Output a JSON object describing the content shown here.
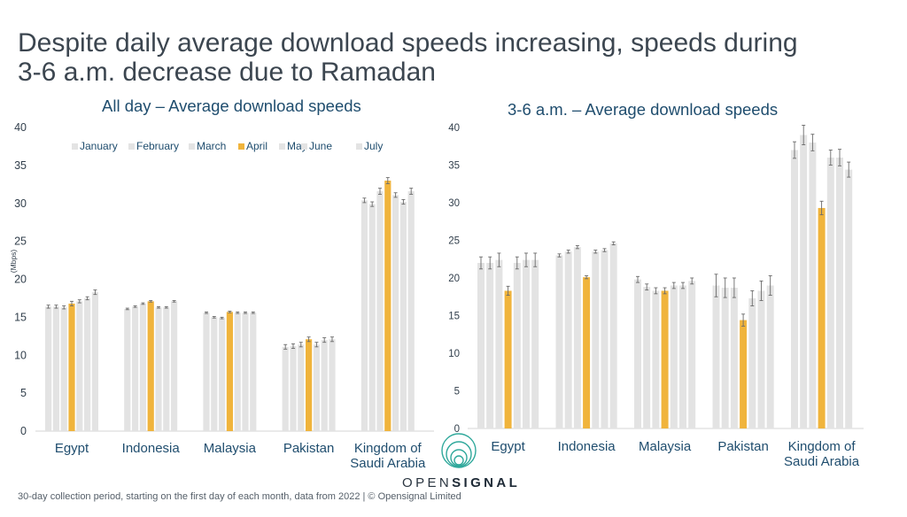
{
  "title": {
    "line1": "Despite daily average download speeds increasing, speeds during",
    "line2": "3-6 a.m. decrease due to Ramadan"
  },
  "footer": "30-day collection period, starting on the first day of each month, data from 2022 | © Opensignal Limited",
  "logo": {
    "part1": "OPEN",
    "part2": "SIGNAL"
  },
  "colors": {
    "gray": "#e3e3e3",
    "highlight": "#f0b43c",
    "axis": "#d6d6d6",
    "errorbar": "#6b6b6b",
    "label": "#1f4d6e"
  },
  "chart_data": [
    {
      "type": "bar",
      "title": "All day – Average download speeds",
      "ylabel": "(Mbps)",
      "ylim": [
        0,
        40
      ],
      "yticks": [
        "0",
        "5",
        "10",
        "15",
        "20",
        "25",
        "30",
        "35",
        "40"
      ],
      "legend": [
        "January",
        "February",
        "March",
        "April",
        "May",
        "June",
        "July"
      ],
      "legend_position": "top",
      "highlight": "April",
      "categories": [
        [
          "Egypt"
        ],
        [
          "Indonesia"
        ],
        [
          "Malaysia"
        ],
        [
          "Pakistan"
        ],
        [
          "Kingdom of",
          "Saudi Arabia"
        ]
      ],
      "values": [
        [
          16.4,
          16.4,
          16.3,
          16.8,
          17.1,
          17.5,
          18.3
        ],
        [
          16.1,
          16.4,
          16.8,
          17.1,
          16.3,
          16.3,
          17.1
        ],
        [
          15.6,
          15.0,
          14.9,
          15.7,
          15.6,
          15.6,
          15.6
        ],
        [
          11.1,
          11.2,
          11.4,
          12.1,
          11.4,
          12.0,
          12.1
        ],
        [
          30.4,
          29.9,
          31.6,
          33.0,
          31.1,
          30.2,
          31.6
        ]
      ],
      "errors": [
        [
          0.2,
          0.2,
          0.2,
          0.3,
          0.2,
          0.2,
          0.3
        ],
        [
          0.1,
          0.1,
          0.1,
          0.1,
          0.1,
          0.1,
          0.1
        ],
        [
          0.1,
          0.1,
          0.1,
          0.1,
          0.1,
          0.1,
          0.1
        ],
        [
          0.3,
          0.3,
          0.3,
          0.3,
          0.3,
          0.3,
          0.3
        ],
        [
          0.3,
          0.3,
          0.4,
          0.4,
          0.3,
          0.3,
          0.4
        ]
      ]
    },
    {
      "type": "bar",
      "title": "3-6 a.m. – Average download speeds",
      "ylabel": "",
      "ylim": [
        0,
        40
      ],
      "yticks": [
        "0",
        "5",
        "10",
        "15",
        "20",
        "25",
        "30",
        "35",
        "40"
      ],
      "legend": [
        "January",
        "February",
        "March",
        "April",
        "May",
        "June",
        "July"
      ],
      "highlight": "April",
      "categories": [
        [
          "Egypt"
        ],
        [
          "Indonesia"
        ],
        [
          "Malaysia"
        ],
        [
          "Pakistan"
        ],
        [
          "Kingdom of",
          "Saudi Arabia"
        ]
      ],
      "values": [
        [
          22.0,
          22.0,
          22.4,
          18.3,
          22.0,
          22.4,
          22.4
        ],
        [
          23.0,
          23.5,
          24.1,
          20.1,
          23.5,
          23.7,
          24.6
        ],
        [
          19.8,
          18.8,
          18.3,
          18.3,
          19.0,
          19.0,
          19.6
        ],
        [
          19.0,
          18.7,
          18.7,
          14.4,
          17.3,
          18.3,
          19.0
        ],
        [
          37.0,
          39.0,
          38.0,
          29.3,
          36.0,
          36.0,
          34.4
        ]
      ],
      "errors": [
        [
          0.8,
          0.8,
          0.9,
          0.6,
          0.8,
          0.9,
          0.9
        ],
        [
          0.2,
          0.2,
          0.2,
          0.2,
          0.2,
          0.2,
          0.2
        ],
        [
          0.4,
          0.4,
          0.4,
          0.4,
          0.4,
          0.4,
          0.4
        ],
        [
          1.5,
          1.3,
          1.3,
          0.8,
          1.0,
          1.3,
          1.3
        ],
        [
          1.1,
          1.3,
          1.1,
          0.9,
          1.0,
          1.1,
          1.0
        ]
      ]
    }
  ]
}
